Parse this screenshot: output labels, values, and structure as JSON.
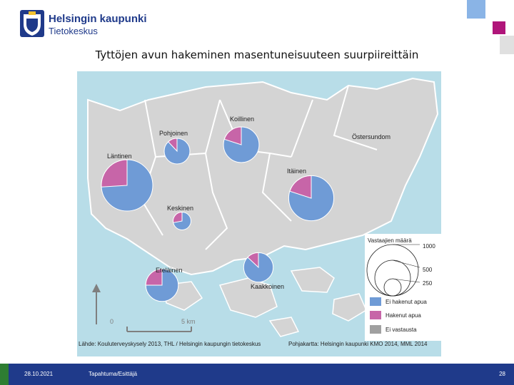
{
  "header": {
    "city": "Helsingin kaupunki",
    "unit": "Tietokeskus",
    "title": "Tyttöjen avun hakeminen masentuneisuuteen suurpiireittäin"
  },
  "map": {
    "water_color": "#b8dde8",
    "land_color": "#d4d4d4",
    "border_color": "#ffffff",
    "districts": [
      {
        "name": "Läntinen",
        "respondents": 1000,
        "sought_help_share": 0.26
      },
      {
        "name": "Pohjoinen",
        "respondents": 250,
        "sought_help_share": 0.12
      },
      {
        "name": "Koillinen",
        "respondents": 480,
        "sought_help_share": 0.2
      },
      {
        "name": "Östersundom",
        "respondents": null,
        "sought_help_share": null
      },
      {
        "name": "Itäinen",
        "respondents": 770,
        "sought_help_share": 0.2
      },
      {
        "name": "Keskinen",
        "respondents": 120,
        "sought_help_share": 0.28
      },
      {
        "name": "Eteläinen",
        "respondents": 400,
        "sought_help_share": 0.25
      },
      {
        "name": "Kaakkoinen",
        "respondents": 330,
        "sought_help_share": 0.13
      }
    ],
    "scale": {
      "start": "0",
      "end": "5 km"
    },
    "legend": {
      "title": "Vastaajien määrä",
      "sizes": [
        "1000",
        "500",
        "250"
      ],
      "categories": [
        {
          "label": "Ei hakenut apua",
          "color": "#6f9bd6"
        },
        {
          "label": "Hakenut apua",
          "color": "#c765a8"
        },
        {
          "label": "Ei vastausta",
          "color": "#a0a0a0"
        }
      ]
    }
  },
  "source": "Lähde: Kouluterveyskysely 2013, THL / Helsingin kaupungin tietokeskus",
  "basemap": "Pohjakartta: Helsingin kaupunki KMO 2014, MML 2014",
  "footer": {
    "date": "28.10.2021",
    "event": "Tapahtuma/Esittäjä",
    "page": "28"
  }
}
